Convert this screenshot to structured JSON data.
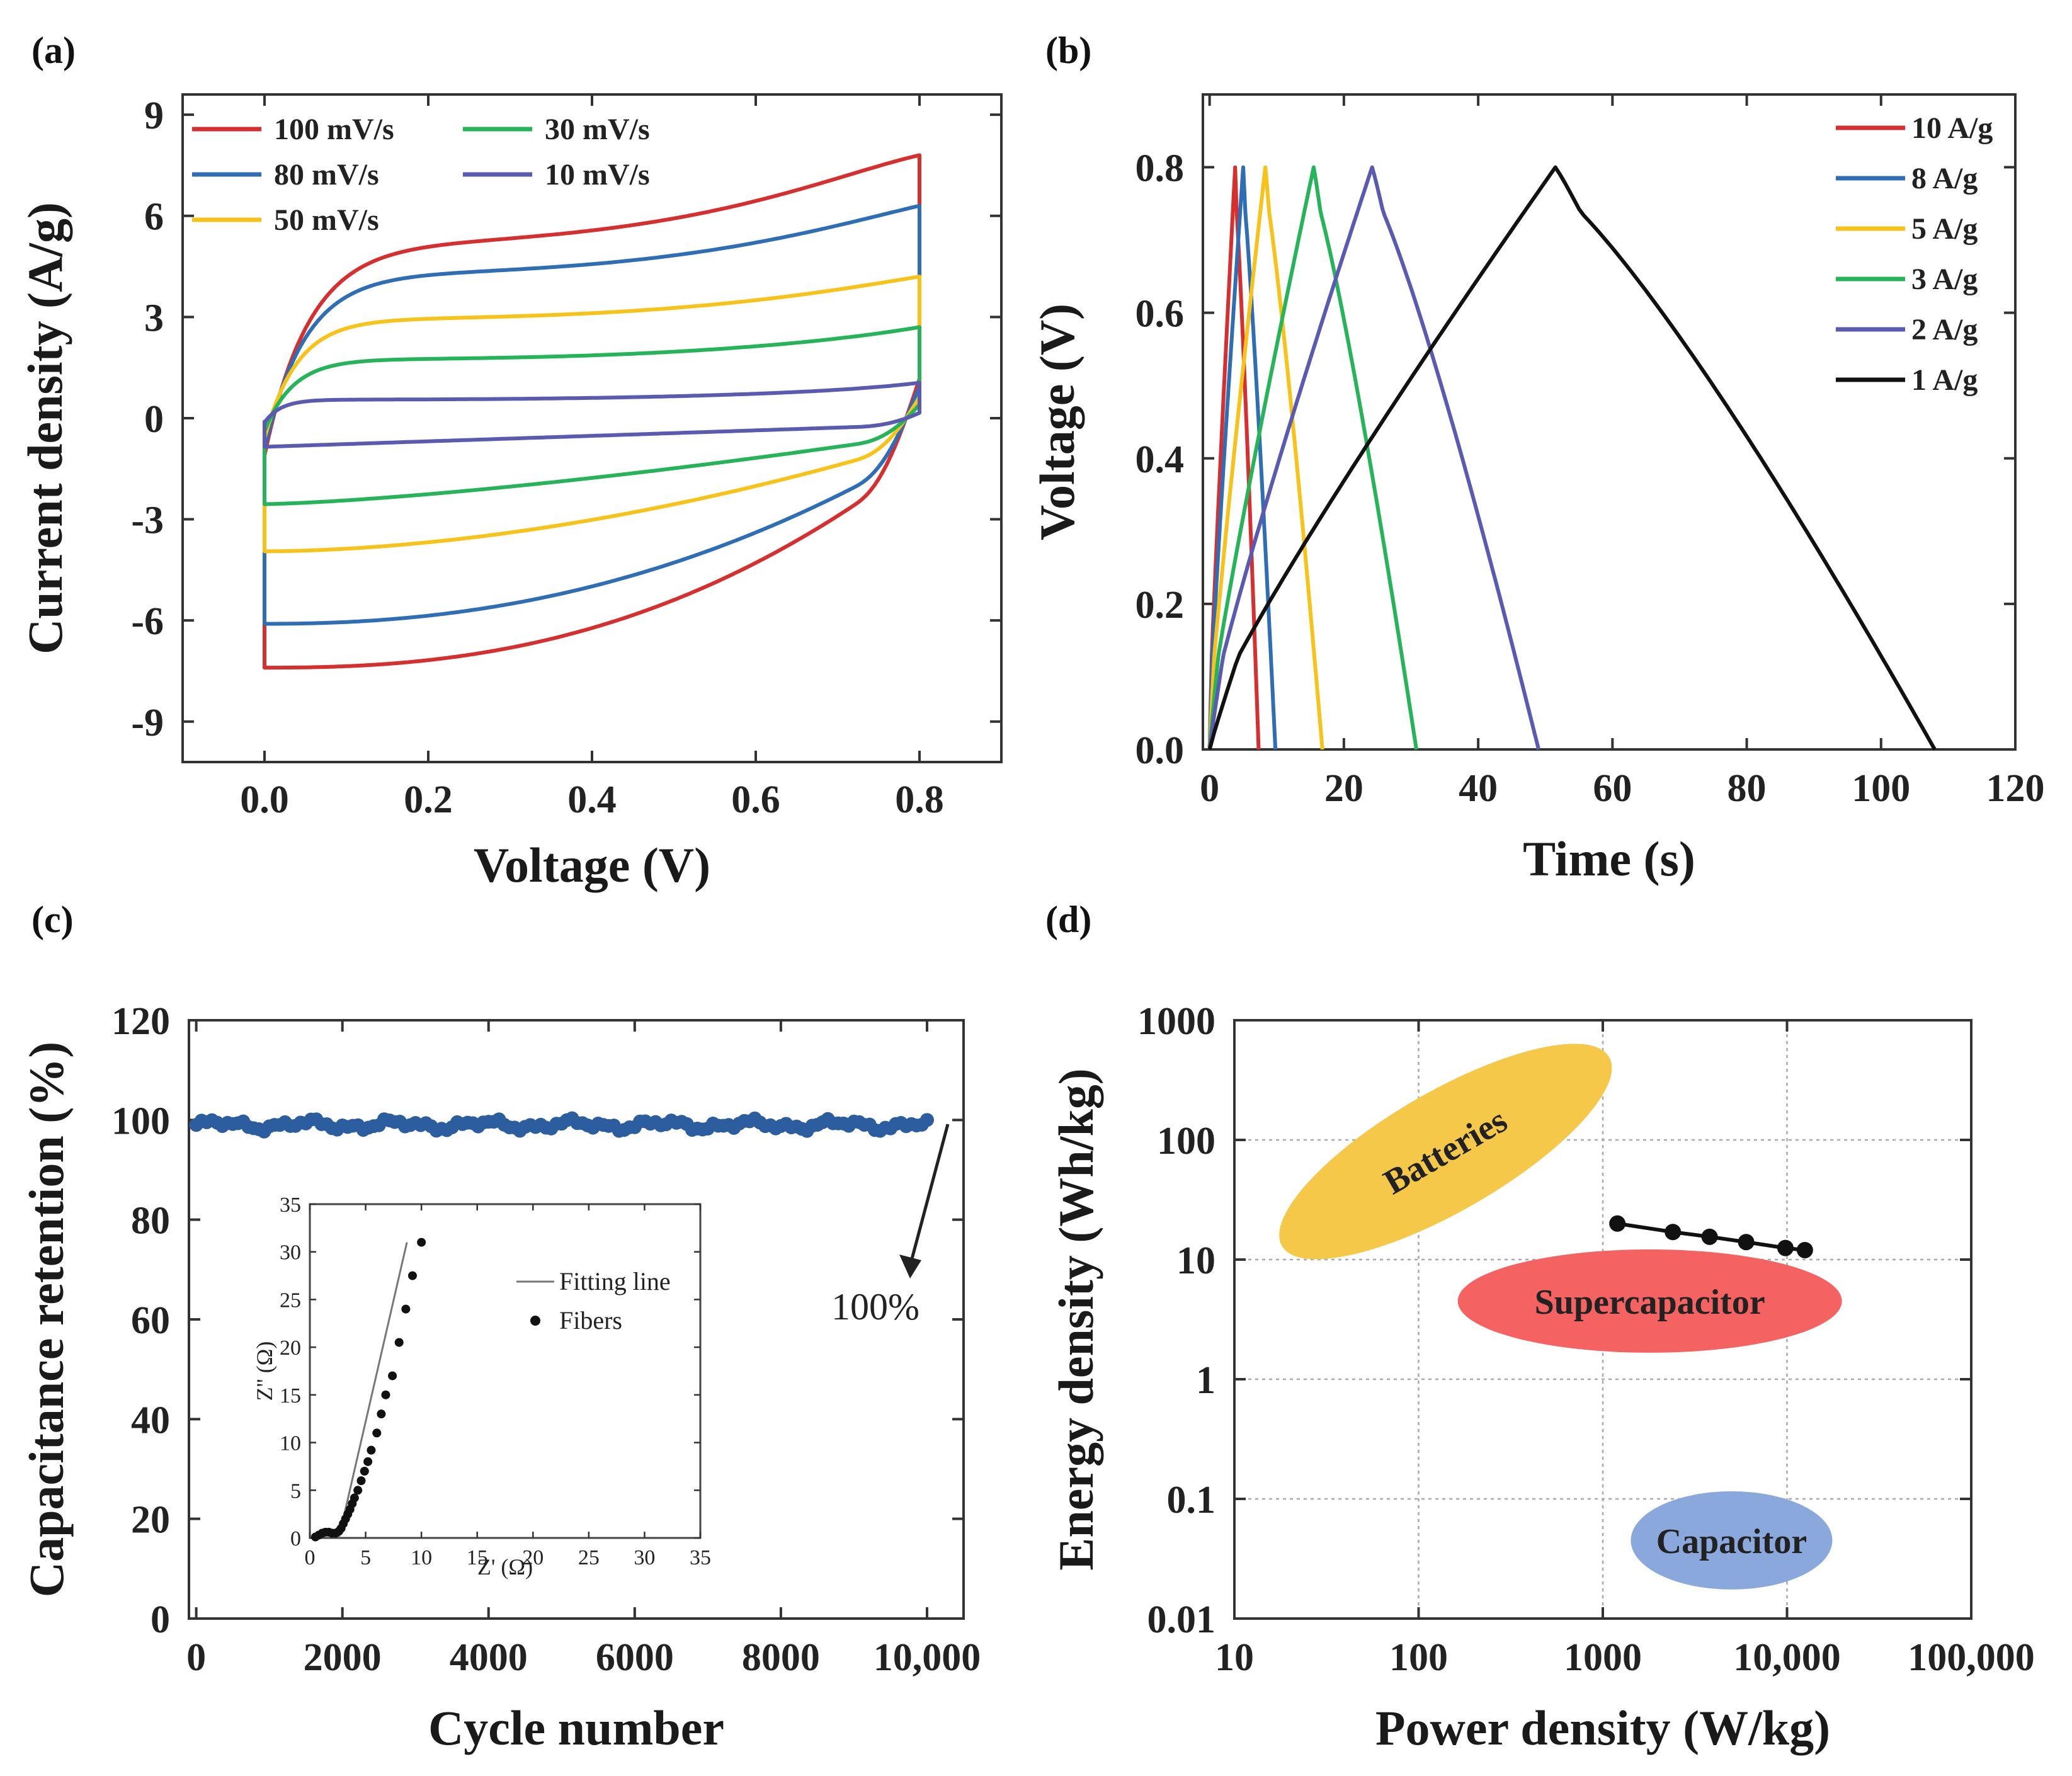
{
  "colors": {
    "red": "#d62f2f",
    "blue": "#2f6db5",
    "yellow": "#f7c31b",
    "green": "#27b35a",
    "purple": "#5a5ab0",
    "black": "#111111",
    "cyc": "#2c5d9e",
    "bat": "#f5c84a",
    "sup": "#f56262",
    "cap": "#8aa8db"
  },
  "chart_data": [
    {
      "panel": "(a)",
      "type": "line",
      "xlabel": "Voltage (V)",
      "ylabel": "Current density (A/g)",
      "xlim": [
        -0.1,
        0.9
      ],
      "ylim": [
        -10.2,
        9.6
      ],
      "xticks": [
        0.0,
        0.2,
        0.4,
        0.6,
        0.8
      ],
      "xtick_labels": [
        "0.0",
        "0.2",
        "0.4",
        "0.6",
        "0.8"
      ],
      "yticks": [
        -9,
        -6,
        -3,
        0,
        3,
        6,
        9
      ],
      "ytick_labels": [
        "-9",
        "-6",
        "-3",
        "0",
        "3",
        "6",
        "9"
      ],
      "series": [
        {
          "name": "100 mV/s",
          "color": "red",
          "upper": {
            "plateau": 5.2,
            "slope": 3.3,
            "end": 7.8,
            "rise": 0.055
          },
          "lower": {
            "start": -7.4,
            "end": -1.2,
            "curve": 2.4
          }
        },
        {
          "name": "80 mV/s",
          "color": "blue",
          "upper": {
            "plateau": 4.3,
            "slope": 2.4,
            "end": 6.3,
            "rise": 0.05
          },
          "lower": {
            "start": -6.1,
            "end": -1.0,
            "curve": 2.2
          }
        },
        {
          "name": "50 mV/s",
          "color": "yellow",
          "upper": {
            "plateau": 2.95,
            "slope": 1.45,
            "end": 4.2,
            "rise": 0.04
          },
          "lower": {
            "start": -3.95,
            "end": -0.7,
            "curve": 1.8
          }
        },
        {
          "name": "30 mV/s",
          "color": "green",
          "upper": {
            "plateau": 1.75,
            "slope": 1.0,
            "end": 2.7,
            "rise": 0.035
          },
          "lower": {
            "start": -2.55,
            "end": -0.5,
            "curve": 1.4
          }
        },
        {
          "name": "10 mV/s",
          "color": "purple",
          "upper": {
            "plateau": 0.55,
            "slope": 0.45,
            "end": 1.05,
            "rise": 0.02
          },
          "lower": {
            "start": -0.85,
            "end": -0.2,
            "curve": 1.0
          }
        }
      ],
      "legend_columns": [
        [
          "100 mV/s",
          "80 mV/s",
          "50 mV/s"
        ],
        [
          "30 mV/s",
          "10 mV/s"
        ]
      ]
    },
    {
      "panel": "(b)",
      "type": "line",
      "xlabel": "Time (s)",
      "ylabel": "Voltage (V)",
      "xlim": [
        -1,
        120
      ],
      "ylim": [
        0.0,
        0.9
      ],
      "xticks": [
        0,
        20,
        40,
        60,
        80,
        100,
        120
      ],
      "xtick_labels": [
        "0",
        "20",
        "40",
        "60",
        "80",
        "100",
        "120"
      ],
      "yticks": [
        0.0,
        0.2,
        0.4,
        0.6,
        0.8
      ],
      "ytick_labels": [
        "0.0",
        "0.2",
        "0.4",
        "0.6",
        "0.8"
      ],
      "series": [
        {
          "name": "10 A/g",
          "color": "red",
          "peak_time": 3.8,
          "end_time": 7.3,
          "vmax": 0.8
        },
        {
          "name": "8 A/g",
          "color": "blue",
          "peak_time": 5.0,
          "end_time": 9.8,
          "vmax": 0.8
        },
        {
          "name": "5 A/g",
          "color": "yellow",
          "peak_time": 8.3,
          "end_time": 16.8,
          "vmax": 0.8
        },
        {
          "name": "3 A/g",
          "color": "green",
          "peak_time": 15.5,
          "end_time": 30.8,
          "vmax": 0.8
        },
        {
          "name": "2 A/g",
          "color": "purple",
          "peak_time": 24.2,
          "end_time": 49.0,
          "vmax": 0.8
        },
        {
          "name": "1 A/g",
          "color": "black",
          "peak_time": 51.5,
          "end_time": 108.0,
          "vmax": 0.8
        }
      ]
    },
    {
      "panel": "(c)",
      "type": "scatter",
      "xlabel": "Cycle number",
      "ylabel": "Capacitance retention (%)",
      "xlim": [
        -100,
        10500
      ],
      "ylim": [
        0,
        120
      ],
      "xticks": [
        0,
        2000,
        4000,
        6000,
        8000,
        10000
      ],
      "xtick_labels": [
        "0",
        "2000",
        "4000",
        "6000",
        "8000",
        "10,000"
      ],
      "yticks": [
        0,
        20,
        40,
        60,
        80,
        100,
        120
      ],
      "ytick_labels": [
        "0",
        "20",
        "40",
        "60",
        "80",
        "100",
        "120"
      ],
      "retention_mean": 99,
      "retention_band": [
        97.5,
        100.5
      ],
      "retention_samples": 140,
      "annotation": "100%",
      "inset": {
        "xlabel": "Z' (Ω)",
        "ylabel": "Z'' (Ω)",
        "xlim": [
          0,
          35
        ],
        "ylim": [
          0,
          35
        ],
        "xticks": [
          0,
          5,
          10,
          15,
          20,
          25,
          30,
          35
        ],
        "xtick_labels": [
          "0",
          "5",
          "10",
          "15",
          "20",
          "25",
          "30",
          "35"
        ],
        "yticks": [
          0,
          5,
          10,
          15,
          20,
          25,
          30,
          35
        ],
        "ytick_labels": [
          "0",
          "5",
          "10",
          "15",
          "20",
          "25",
          "30",
          "35"
        ],
        "legend": [
          "Fitting line",
          "Fibers"
        ],
        "fit_line": {
          "x": [
            2.6,
            8.7
          ],
          "y": [
            0.0,
            31.0
          ]
        },
        "points": [
          [
            0.5,
            0.1
          ],
          [
            0.8,
            0.3
          ],
          [
            1.1,
            0.5
          ],
          [
            1.4,
            0.6
          ],
          [
            1.7,
            0.6
          ],
          [
            2.0,
            0.5
          ],
          [
            2.3,
            0.5
          ],
          [
            2.6,
            0.7
          ],
          [
            2.8,
            1.0
          ],
          [
            3.0,
            1.5
          ],
          [
            3.2,
            2.0
          ],
          [
            3.4,
            2.5
          ],
          [
            3.6,
            3.0
          ],
          [
            3.8,
            3.6
          ],
          [
            4.0,
            4.2
          ],
          [
            4.3,
            5.0
          ],
          [
            4.6,
            6.0
          ],
          [
            4.9,
            7.0
          ],
          [
            5.2,
            8.0
          ],
          [
            5.5,
            9.2
          ],
          [
            6.0,
            11.0
          ],
          [
            6.4,
            13.0
          ],
          [
            6.8,
            15.0
          ],
          [
            7.4,
            17.0
          ],
          [
            8.0,
            20.5
          ],
          [
            8.6,
            24.0
          ],
          [
            9.2,
            27.5
          ],
          [
            10.0,
            31.0
          ]
        ]
      }
    },
    {
      "panel": "(d)",
      "type": "scatter",
      "xlabel": "Power density (W/kg)",
      "ylabel": "Energy density (Wh/kg)",
      "xscale": "log",
      "yscale": "log",
      "xlim": [
        10,
        100000
      ],
      "ylim": [
        0.01,
        1000
      ],
      "xticks": [
        10,
        100,
        1000,
        10000,
        100000
      ],
      "xtick_labels": [
        "10",
        "100",
        "1000",
        "10,000",
        "100,000"
      ],
      "yticks": [
        0.01,
        0.1,
        1,
        10,
        100,
        1000
      ],
      "ytick_labels": [
        "0.01",
        "0.1",
        "1",
        "10",
        "100",
        "1000"
      ],
      "grid": true,
      "points": {
        "x": [
          1200,
          2400,
          3800,
          6000,
          9800,
          12500
        ],
        "y": [
          20,
          17,
          15.5,
          14,
          12.5,
          12
        ]
      },
      "regions": [
        {
          "name": "Batteries",
          "center": [
            140,
            80
          ],
          "color": "bat"
        },
        {
          "name": "Supercapacitor",
          "center": [
            1800,
            4.5
          ],
          "color": "sup"
        },
        {
          "name": "Capacitor",
          "center": [
            5000,
            0.045
          ],
          "color": "cap"
        }
      ]
    }
  ]
}
